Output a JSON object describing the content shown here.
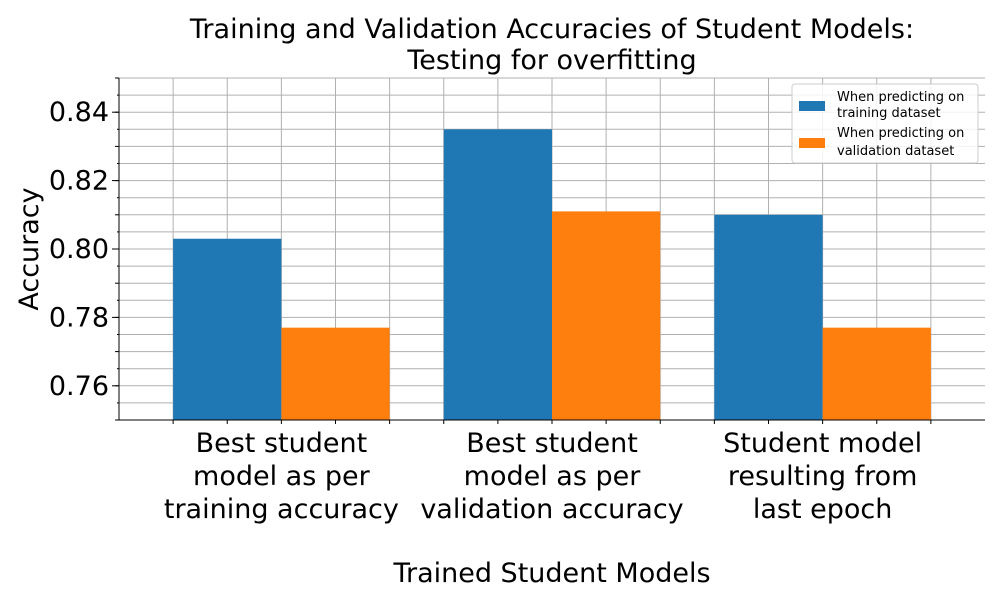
{
  "chart_data": {
    "type": "bar",
    "title_lines": [
      "Training and Validation Accuracies of Student Models:",
      "Testing for overfitting"
    ],
    "xlabel": "Trained Student Models",
    "ylabel": "Accuracy",
    "ylim": [
      0.75,
      0.85
    ],
    "yticks": [
      "0.76",
      "0.78",
      "0.80",
      "0.82",
      "0.84"
    ],
    "grid": true,
    "legend_position": "top-right",
    "categories": [
      [
        "Best student",
        "model as per",
        "training accuracy"
      ],
      [
        "Best student",
        "model as per",
        "validation accuracy"
      ],
      [
        "Student model",
        "resulting from",
        "last epoch"
      ]
    ],
    "series": [
      {
        "name_lines": [
          "When predicting on",
          "training dataset"
        ],
        "color": "#1f77b4",
        "values": [
          0.803,
          0.835,
          0.81
        ]
      },
      {
        "name_lines": [
          "When predicting on",
          "validation dataset"
        ],
        "color": "#ff7f0e",
        "values": [
          0.777,
          0.811,
          0.777
        ]
      }
    ]
  }
}
